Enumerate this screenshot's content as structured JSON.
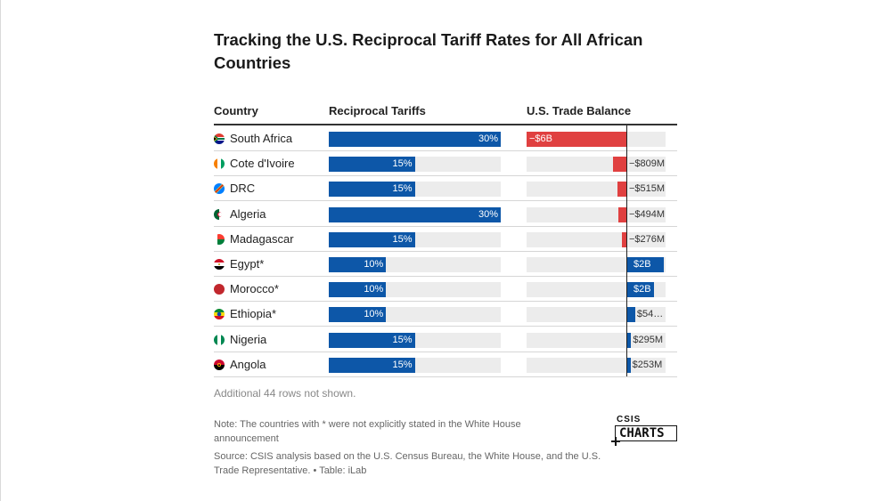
{
  "chart_data": {
    "type": "table",
    "title": "Tracking the U.S. Reciprocal Tariff Rates for All African Countries",
    "columns": [
      "Country",
      "Reciprocal Tariffs",
      "U.S. Trade Balance"
    ],
    "tariff_max": 30,
    "balance_range_millions": [
      -6000,
      2400
    ],
    "rows": [
      {
        "country": "South Africa",
        "flag": "south-africa-flag",
        "tariff": 30,
        "tariff_label": "30%",
        "balance": -6000,
        "balance_label": "−$6B"
      },
      {
        "country": "Cote d'Ivoire",
        "flag": "cote-divoire-flag",
        "tariff": 15,
        "tariff_label": "15%",
        "balance": -809,
        "balance_label": "−$809M"
      },
      {
        "country": "DRC",
        "flag": "drc-flag",
        "tariff": 15,
        "tariff_label": "15%",
        "balance": -515,
        "balance_label": "−$515M"
      },
      {
        "country": "Algeria",
        "flag": "algeria-flag",
        "tariff": 30,
        "tariff_label": "30%",
        "balance": -494,
        "balance_label": "−$494M"
      },
      {
        "country": "Madagascar",
        "flag": "madagascar-flag",
        "tariff": 15,
        "tariff_label": "15%",
        "balance": -276,
        "balance_label": "−$276M"
      },
      {
        "country": "Egypt*",
        "flag": "egypt-flag",
        "tariff": 10,
        "tariff_label": "10%",
        "balance": 2300,
        "balance_label": "$2B"
      },
      {
        "country": "Morocco*",
        "flag": "morocco-flag",
        "tariff": 10,
        "tariff_label": "10%",
        "balance": 1700,
        "balance_label": "$2B"
      },
      {
        "country": "Ethiopia*",
        "flag": "ethiopia-flag",
        "tariff": 10,
        "tariff_label": "10%",
        "balance": 540,
        "balance_label": "$54…"
      },
      {
        "country": "Nigeria",
        "flag": "nigeria-flag",
        "tariff": 15,
        "tariff_label": "15%",
        "balance": 295,
        "balance_label": "$295M"
      },
      {
        "country": "Angola",
        "flag": "angola-flag",
        "tariff": 15,
        "tariff_label": "15%",
        "balance": 253,
        "balance_label": "$253M"
      }
    ],
    "footer_more": "Additional 44 rows not shown.",
    "note": "Note: The countries with * were not explicitly stated in the White House announcement",
    "source": "Source: CSIS analysis based on the U.S. Census Bureau, the White House, and the U.S. Trade Representative. • Table: iLab"
  },
  "logo": {
    "top": "CSIS",
    "main": "CHARTS"
  },
  "colors": {
    "tariff_bar": "#0d57a8",
    "negative_balance": "#e04040",
    "positive_balance": "#0d57a8",
    "track": "#ececec"
  }
}
